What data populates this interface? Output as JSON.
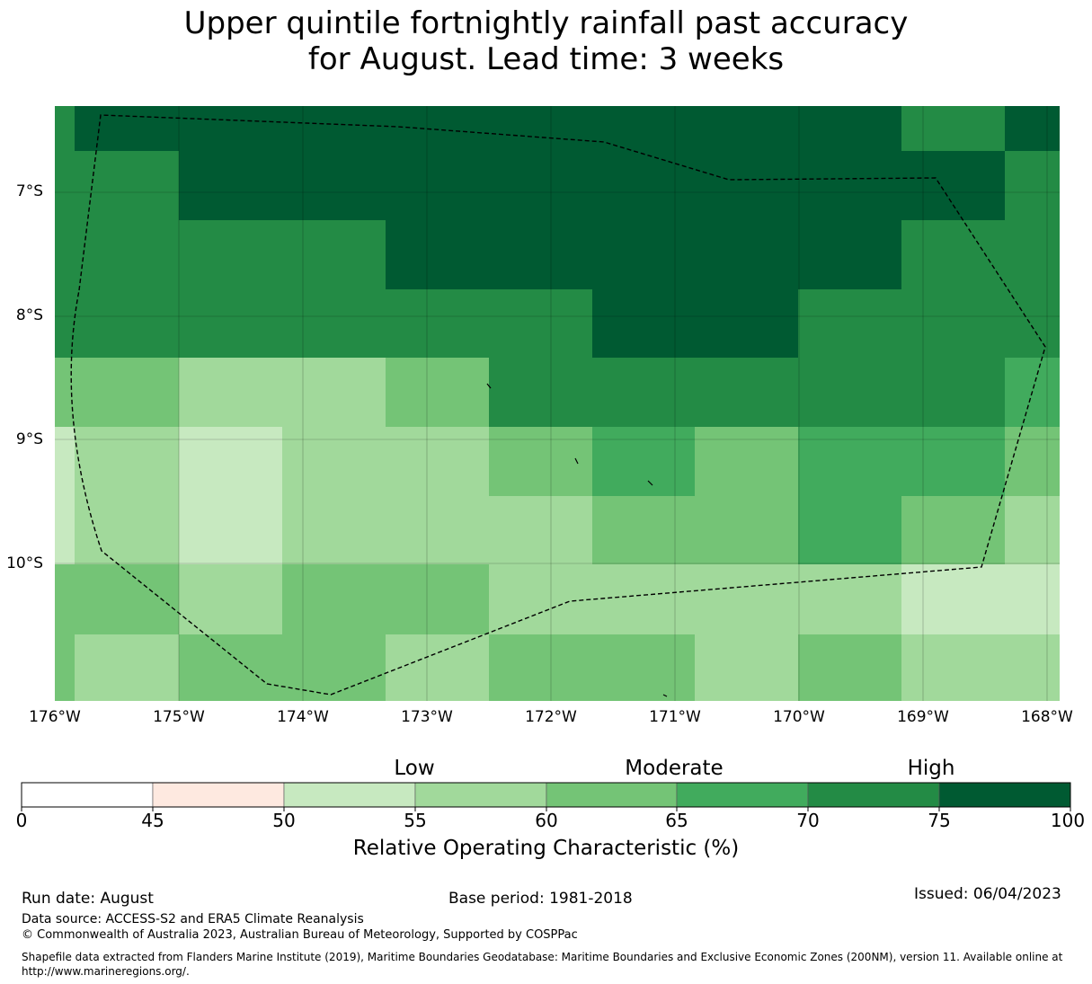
{
  "title": {
    "line1": "Upper quintile fortnightly rainfall past accuracy",
    "line2": "for August. Lead time: 3 weeks"
  },
  "map": {
    "lat_labels": [
      "7°S",
      "8°S",
      "9°S",
      "10°S"
    ],
    "lon_labels": [
      "176°W",
      "175°W",
      "174°W",
      "173°W",
      "172°W",
      "171°W",
      "170°W",
      "169°W",
      "168°W"
    ],
    "colors": {
      "c4550": "#fee9e0",
      "c5055": "#c7e9c0",
      "c5560": "#a1d99b",
      "c6065": "#74c476",
      "c6570": "#41ab5d",
      "c7075": "#238b45",
      "c75100": "#005a32",
      "boundary": "#000000"
    },
    "grid_row_values": [
      [
        "c7075",
        "c75100",
        "c75100",
        "c75100",
        "c75100",
        "c75100",
        "c75100",
        "c75100",
        "c75100",
        "c7075",
        "c75100"
      ],
      [
        "c7075",
        "c7075",
        "c75100",
        "c75100",
        "c75100",
        "c75100",
        "c75100",
        "c75100",
        "c75100",
        "c75100",
        "c7075"
      ],
      [
        "c7075",
        "c7075",
        "c7075",
        "c7075",
        "c75100",
        "c75100",
        "c75100",
        "c75100",
        "c75100",
        "c7075",
        "c7075"
      ],
      [
        "c7075",
        "c7075",
        "c7075",
        "c7075",
        "c7075",
        "c7075",
        "c75100",
        "c75100",
        "c7075",
        "c7075",
        "c7075"
      ],
      [
        "c6065",
        "c6065",
        "c5560",
        "c5560",
        "c6065",
        "c7075",
        "c7075",
        "c7075",
        "c7075",
        "c7075",
        "c6570"
      ],
      [
        "c5055",
        "c5560",
        "c5055",
        "c5560",
        "c5560",
        "c6065",
        "c6570",
        "c6065",
        "c6570",
        "c6570",
        "c6065"
      ],
      [
        "c5055",
        "c5560",
        "c5055",
        "c5560",
        "c5560",
        "c5560",
        "c6065",
        "c6065",
        "c6570",
        "c6065",
        "c5560"
      ],
      [
        "c6065",
        "c6065",
        "c5560",
        "c6065",
        "c6065",
        "c5560",
        "c5560",
        "c5560",
        "c5560",
        "c5055",
        "c5055"
      ],
      [
        "c6065",
        "c5560",
        "c6065",
        "c6065",
        "c5560",
        "c6065",
        "c6065",
        "c5560",
        "c6065",
        "c5560",
        "c5560"
      ]
    ]
  },
  "colorbar": {
    "categories": [
      "Low",
      "Moderate",
      "High"
    ],
    "ticks": [
      "0",
      "45",
      "50",
      "55",
      "60",
      "65",
      "70",
      "75",
      "100"
    ],
    "colors": [
      "#ffffff",
      "#fee9e0",
      "#c7e9c0",
      "#a1d99b",
      "#74c476",
      "#41ab5d",
      "#238b45",
      "#005a32"
    ],
    "title": "Relative Operating Characteristic (%)"
  },
  "footer": {
    "run_date": "Run date: August",
    "base_period": "Base period: 1981-2018",
    "issued": "Issued: 06/04/2023",
    "data_source": "Data source: ACCESS-S2 and ERA5 Climate Reanalysis",
    "copyright": "© Commonwealth of Australia 2023, Australian Bureau of Meteorology, Supported by COSPPac",
    "shapefile": "Shapefile data extracted from Flanders Marine Institute (2019), Maritime Boundaries Geodatabase: Maritime Boundaries and Exclusive Economic Zones (200NM), version 11. Available online at http://www.marineregions.org/."
  }
}
